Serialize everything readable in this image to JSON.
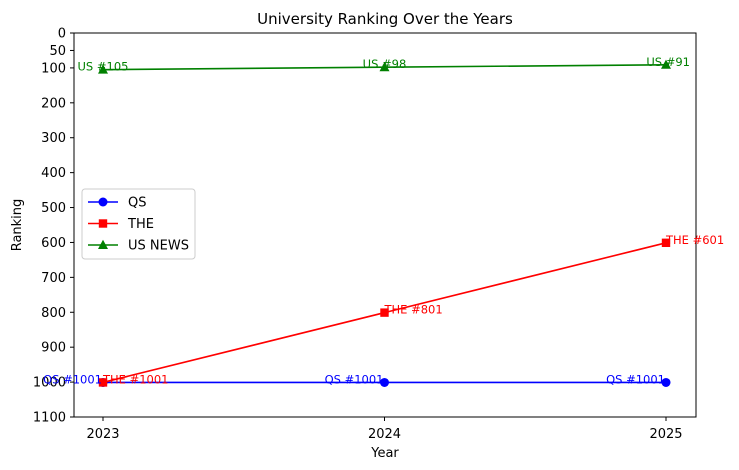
{
  "chart_data": {
    "type": "line",
    "title": "University Ranking Over the Years",
    "xlabel": "Year",
    "ylabel": "Ranking",
    "categories": [
      "2023",
      "2024",
      "2025"
    ],
    "y_inverted": true,
    "ylim": [
      0,
      1100
    ],
    "yticks": [
      0,
      50,
      100,
      200,
      300,
      400,
      500,
      600,
      700,
      800,
      900,
      1000,
      1100
    ],
    "grid": false,
    "legend_placement": "center-left",
    "series": [
      {
        "name": "QS",
        "values": [
          1001,
          1001,
          1001
        ],
        "labels": [
          "QS #1001",
          "QS #1001",
          "QS #1001"
        ],
        "color": "#0000ff",
        "marker": "circle"
      },
      {
        "name": "THE",
        "values": [
          1001,
          801,
          601
        ],
        "labels": [
          "THE #1001",
          "THE #801",
          "THE #601"
        ],
        "color": "#ff0000",
        "marker": "square"
      },
      {
        "name": "US NEWS",
        "values": [
          105,
          98,
          91
        ],
        "labels": [
          "US #105",
          "US #98",
          "US #91"
        ],
        "color": "#008000",
        "marker": "triangle"
      }
    ]
  }
}
